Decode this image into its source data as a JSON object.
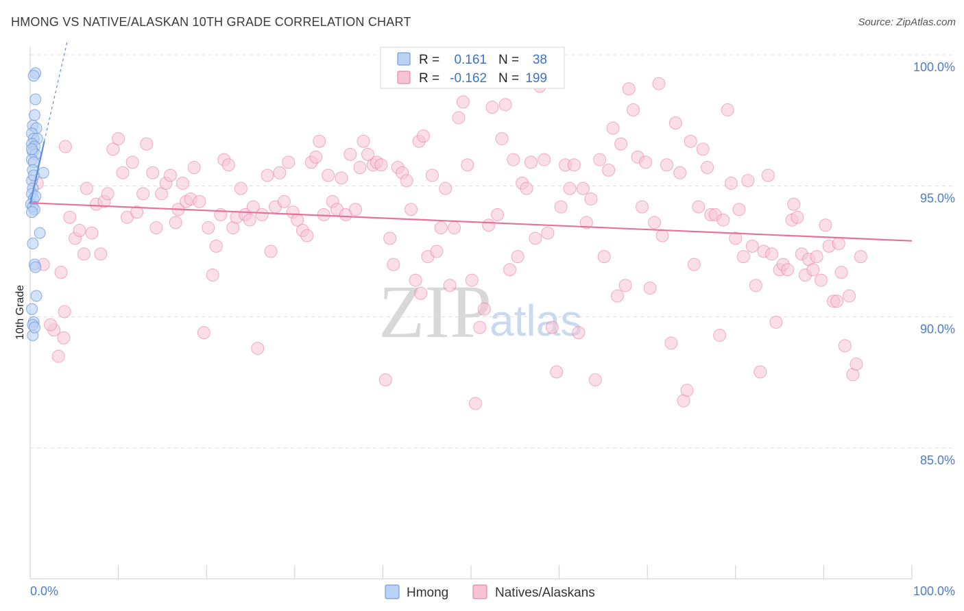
{
  "header": {
    "title": "HMONG VS NATIVE/ALASKAN 10TH GRADE CORRELATION CHART",
    "source": "Source: ZipAtlas.com"
  },
  "colors": {
    "hmong": "#5b8fd8",
    "hmong_fill": "#b9d1f3",
    "natives": "#e8709c",
    "natives_fill": "#f7c4d6",
    "tick_text": "#4a7cc4",
    "grid": "#dddddd"
  },
  "legend": {
    "hmong": {
      "r_label": "R =",
      "r_value": "0.161",
      "n_label": "N =",
      "n_value": "38"
    },
    "natives": {
      "r_label": "R =",
      "r_value": "-0.162",
      "n_label": "N =",
      "n_value": "199"
    }
  },
  "bottom_legend": {
    "hmong": "Hmong",
    "natives": "Natives/Alaskans"
  },
  "watermark": {
    "zip": "ZIP",
    "atlas": "atlas"
  },
  "chart_data": {
    "type": "scatter",
    "title": "HMONG VS NATIVE/ALASKAN 10TH GRADE CORRELATION CHART",
    "ylabel": "10th Grade",
    "xlabel": "",
    "x_ticks": [
      "0.0%",
      "100.0%"
    ],
    "y_ticks": [
      {
        "value": 100.0,
        "label": "100.0%"
      },
      {
        "value": 95.0,
        "label": "95.0%"
      },
      {
        "value": 90.0,
        "label": "90.0%"
      },
      {
        "value": 85.0,
        "label": "85.0%"
      }
    ],
    "xlim": [
      0,
      100
    ],
    "ylim": [
      80.0,
      101.5
    ],
    "grid": true,
    "series": [
      {
        "name": "Hmong",
        "R": 0.161,
        "N": 38,
        "trend": {
          "x": [
            0.0,
            1.6
          ],
          "y": [
            94.3,
            96.7
          ]
        },
        "trend_dashed": {
          "x": [
            1.6,
            4.2
          ],
          "y": [
            96.7,
            100.5
          ]
        },
        "points": [
          [
            0.6,
            99.3
          ],
          [
            0.4,
            99.2
          ],
          [
            0.6,
            98.3
          ],
          [
            0.5,
            97.7
          ],
          [
            0.3,
            97.3
          ],
          [
            0.7,
            97.2
          ],
          [
            0.2,
            97.0
          ],
          [
            0.4,
            96.8
          ],
          [
            0.8,
            96.8
          ],
          [
            0.2,
            96.6
          ],
          [
            0.5,
            96.5
          ],
          [
            0.3,
            96.3
          ],
          [
            0.6,
            96.2
          ],
          [
            0.2,
            96.0
          ],
          [
            0.4,
            95.9
          ],
          [
            0.3,
            95.6
          ],
          [
            1.5,
            95.5
          ],
          [
            0.2,
            95.2
          ],
          [
            0.3,
            94.9
          ],
          [
            0.2,
            94.7
          ],
          [
            0.4,
            94.5
          ],
          [
            0.1,
            94.3
          ],
          [
            0.3,
            94.2
          ],
          [
            0.5,
            94.1
          ],
          [
            0.2,
            94.0
          ],
          [
            1.1,
            93.2
          ],
          [
            0.3,
            92.8
          ],
          [
            0.5,
            92.0
          ],
          [
            0.6,
            91.9
          ],
          [
            0.7,
            90.8
          ],
          [
            0.2,
            90.3
          ],
          [
            0.4,
            89.8
          ],
          [
            0.3,
            89.3
          ],
          [
            0.3,
            89.7
          ],
          [
            0.5,
            89.6
          ],
          [
            0.2,
            96.4
          ],
          [
            0.4,
            95.4
          ],
          [
            0.6,
            94.6
          ]
        ]
      },
      {
        "name": "Natives/Alaskans",
        "R": -0.162,
        "N": 199,
        "trend": {
          "x": [
            0.0,
            100.0
          ],
          "y": [
            94.35,
            92.9
          ]
        },
        "points": [
          [
            2.7,
            89.5
          ],
          [
            1.5,
            92.0
          ],
          [
            0.8,
            95.1
          ],
          [
            2.3,
            89.7
          ],
          [
            3.2,
            88.5
          ],
          [
            3.8,
            89.2
          ],
          [
            3.5,
            91.7
          ],
          [
            4.0,
            96.5
          ],
          [
            3.9,
            90.2
          ],
          [
            4.5,
            93.8
          ],
          [
            5.1,
            93.0
          ],
          [
            5.6,
            93.3
          ],
          [
            6.1,
            92.4
          ],
          [
            6.4,
            94.9
          ],
          [
            7.0,
            93.2
          ],
          [
            7.5,
            94.3
          ],
          [
            8.0,
            92.4
          ],
          [
            8.4,
            94.4
          ],
          [
            8.8,
            94.7
          ],
          [
            9.4,
            96.4
          ],
          [
            10.0,
            96.8
          ],
          [
            10.5,
            95.5
          ],
          [
            11.0,
            93.8
          ],
          [
            11.6,
            95.9
          ],
          [
            12.1,
            94.0
          ],
          [
            12.8,
            94.7
          ],
          [
            13.2,
            96.6
          ],
          [
            13.9,
            95.5
          ],
          [
            14.3,
            93.4
          ],
          [
            14.9,
            94.7
          ],
          [
            15.4,
            95.1
          ],
          [
            15.9,
            95.4
          ],
          [
            16.5,
            93.6
          ],
          [
            16.8,
            94.1
          ],
          [
            17.3,
            95.1
          ],
          [
            17.7,
            94.4
          ],
          [
            18.2,
            94.5
          ],
          [
            18.6,
            95.7
          ],
          [
            19.2,
            94.4
          ],
          [
            19.7,
            89.4
          ],
          [
            20.2,
            93.4
          ],
          [
            20.7,
            91.6
          ],
          [
            21.1,
            92.7
          ],
          [
            21.6,
            93.9
          ],
          [
            22.0,
            96.0
          ],
          [
            22.5,
            95.8
          ],
          [
            23.0,
            93.4
          ],
          [
            23.4,
            93.8
          ],
          [
            23.9,
            94.9
          ],
          [
            24.4,
            93.9
          ],
          [
            24.9,
            93.7
          ],
          [
            25.3,
            94.2
          ],
          [
            25.8,
            88.8
          ],
          [
            26.3,
            93.9
          ],
          [
            26.9,
            95.4
          ],
          [
            27.3,
            92.5
          ],
          [
            27.8,
            94.2
          ],
          [
            28.3,
            95.5
          ],
          [
            28.8,
            94.4
          ],
          [
            29.3,
            95.9
          ],
          [
            29.8,
            94.0
          ],
          [
            30.3,
            93.7
          ],
          [
            30.9,
            93.3
          ],
          [
            31.4,
            93.1
          ],
          [
            31.9,
            95.9
          ],
          [
            32.4,
            96.1
          ],
          [
            32.8,
            96.7
          ],
          [
            33.3,
            93.9
          ],
          [
            33.8,
            95.4
          ],
          [
            34.3,
            94.4
          ],
          [
            34.8,
            94.1
          ],
          [
            35.3,
            95.3
          ],
          [
            35.8,
            93.9
          ],
          [
            36.3,
            96.2
          ],
          [
            36.9,
            94.1
          ],
          [
            37.4,
            95.7
          ],
          [
            37.8,
            96.7
          ],
          [
            38.3,
            96.2
          ],
          [
            38.9,
            95.8
          ],
          [
            39.3,
            95.9
          ],
          [
            39.8,
            95.8
          ],
          [
            40.3,
            87.6
          ],
          [
            40.8,
            93.0
          ],
          [
            41.2,
            92.0
          ],
          [
            41.7,
            95.7
          ],
          [
            42.2,
            95.5
          ],
          [
            42.7,
            95.2
          ],
          [
            43.2,
            94.1
          ],
          [
            43.7,
            91.4
          ],
          [
            44.1,
            96.7
          ],
          [
            44.6,
            96.9
          ],
          [
            44.3,
            90.9
          ],
          [
            45.1,
            92.3
          ],
          [
            45.6,
            95.4
          ],
          [
            46.1,
            92.5
          ],
          [
            46.6,
            93.4
          ],
          [
            47.1,
            94.9
          ],
          [
            47.6,
            91.2
          ],
          [
            48.1,
            93.4
          ],
          [
            48.6,
            97.6
          ],
          [
            49.1,
            98.2
          ],
          [
            49.6,
            95.8
          ],
          [
            50.1,
            91.4
          ],
          [
            50.5,
            86.7
          ],
          [
            51.0,
            89.6
          ],
          [
            51.5,
            90.3
          ],
          [
            52.0,
            93.5
          ],
          [
            52.4,
            98.0
          ],
          [
            53.0,
            93.9
          ],
          [
            53.5,
            96.8
          ],
          [
            53.9,
            98.1
          ],
          [
            54.4,
            91.8
          ],
          [
            54.8,
            96.0
          ],
          [
            55.3,
            92.3
          ],
          [
            55.8,
            95.1
          ],
          [
            56.3,
            94.9
          ],
          [
            56.8,
            95.9
          ],
          [
            57.3,
            93.0
          ],
          [
            57.8,
            98.8
          ],
          [
            58.3,
            96.0
          ],
          [
            58.7,
            93.2
          ],
          [
            59.2,
            89.6
          ],
          [
            59.7,
            87.9
          ],
          [
            60.2,
            94.2
          ],
          [
            60.7,
            95.8
          ],
          [
            61.2,
            94.9
          ],
          [
            61.7,
            95.8
          ],
          [
            62.2,
            89.4
          ],
          [
            62.7,
            94.9
          ],
          [
            63.1,
            93.6
          ],
          [
            63.6,
            94.5
          ],
          [
            64.1,
            87.6
          ],
          [
            64.6,
            96.0
          ],
          [
            65.1,
            92.3
          ],
          [
            65.6,
            95.6
          ],
          [
            66.1,
            97.2
          ],
          [
            66.6,
            90.8
          ],
          [
            67.0,
            96.6
          ],
          [
            67.5,
            91.2
          ],
          [
            67.9,
            98.7
          ],
          [
            68.4,
            97.9
          ],
          [
            68.9,
            96.1
          ],
          [
            69.4,
            94.2
          ],
          [
            69.8,
            95.9
          ],
          [
            70.3,
            91.1
          ],
          [
            70.8,
            93.6
          ],
          [
            71.3,
            98.9
          ],
          [
            71.7,
            93.1
          ],
          [
            72.2,
            95.8
          ],
          [
            72.7,
            89.0
          ],
          [
            73.2,
            97.4
          ],
          [
            73.7,
            95.5
          ],
          [
            74.1,
            86.8
          ],
          [
            74.5,
            87.2
          ],
          [
            74.9,
            96.7
          ],
          [
            75.3,
            92.0
          ],
          [
            75.8,
            94.2
          ],
          [
            76.3,
            96.4
          ],
          [
            76.8,
            95.7
          ],
          [
            77.2,
            93.9
          ],
          [
            77.7,
            93.9
          ],
          [
            78.2,
            89.3
          ],
          [
            78.6,
            93.7
          ],
          [
            79.1,
            97.9
          ],
          [
            79.5,
            95.1
          ],
          [
            80.0,
            93.0
          ],
          [
            80.4,
            94.1
          ],
          [
            80.9,
            92.3
          ],
          [
            81.4,
            95.2
          ],
          [
            81.9,
            92.7
          ],
          [
            82.3,
            91.2
          ],
          [
            82.8,
            87.9
          ],
          [
            83.2,
            92.5
          ],
          [
            83.7,
            95.4
          ],
          [
            84.1,
            92.4
          ],
          [
            84.6,
            89.8
          ],
          [
            85.0,
            91.8
          ],
          [
            85.4,
            92.0
          ],
          [
            85.9,
            91.8
          ],
          [
            86.4,
            93.7
          ],
          [
            86.6,
            94.3
          ],
          [
            87.0,
            93.8
          ],
          [
            87.5,
            92.4
          ],
          [
            87.9,
            91.6
          ],
          [
            88.3,
            92.2
          ],
          [
            88.8,
            91.8
          ],
          [
            89.2,
            92.3
          ],
          [
            89.7,
            91.4
          ],
          [
            90.2,
            93.5
          ],
          [
            90.6,
            92.7
          ],
          [
            91.1,
            90.6
          ],
          [
            91.5,
            90.6
          ],
          [
            92.0,
            91.7
          ],
          [
            92.4,
            88.9
          ],
          [
            92.9,
            90.8
          ],
          [
            93.3,
            87.8
          ],
          [
            93.7,
            88.2
          ],
          [
            94.2,
            92.3
          ],
          [
            91.7,
            92.8
          ]
        ]
      }
    ]
  }
}
